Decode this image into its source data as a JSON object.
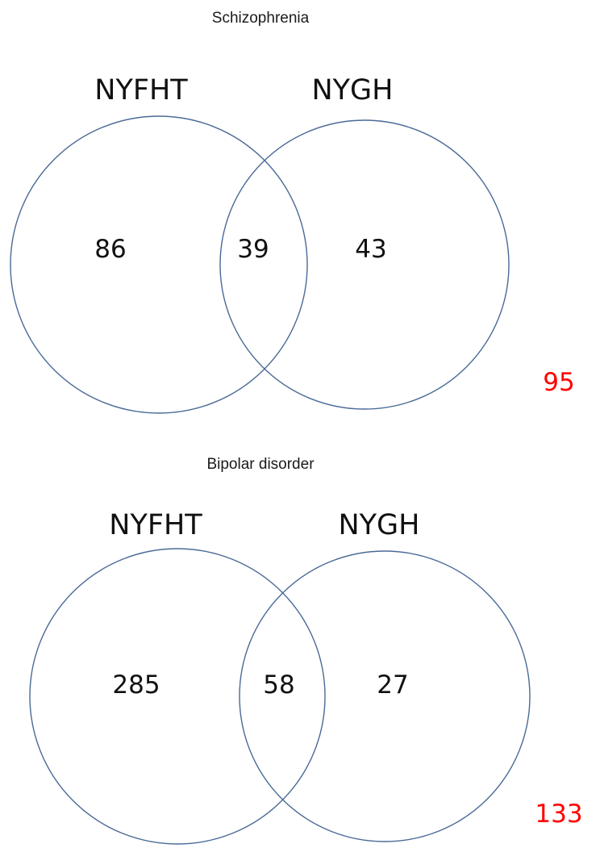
{
  "colors": {
    "circle_stroke": "#4a6a96",
    "text": "#111111",
    "extra_count": "#ff0000"
  },
  "panels": [
    {
      "title": "Schizophrenia",
      "sets": [
        "NYFHT",
        "NYGH"
      ],
      "counts": {
        "left_only": "86",
        "overlap": "39",
        "right_only": "43"
      },
      "extra_count": "95"
    },
    {
      "title": "Bipolar disorder",
      "sets": [
        "NYFHT",
        "NYGH"
      ],
      "counts": {
        "left_only": "285",
        "overlap": "58",
        "right_only": "27"
      },
      "extra_count": "133"
    }
  ]
}
